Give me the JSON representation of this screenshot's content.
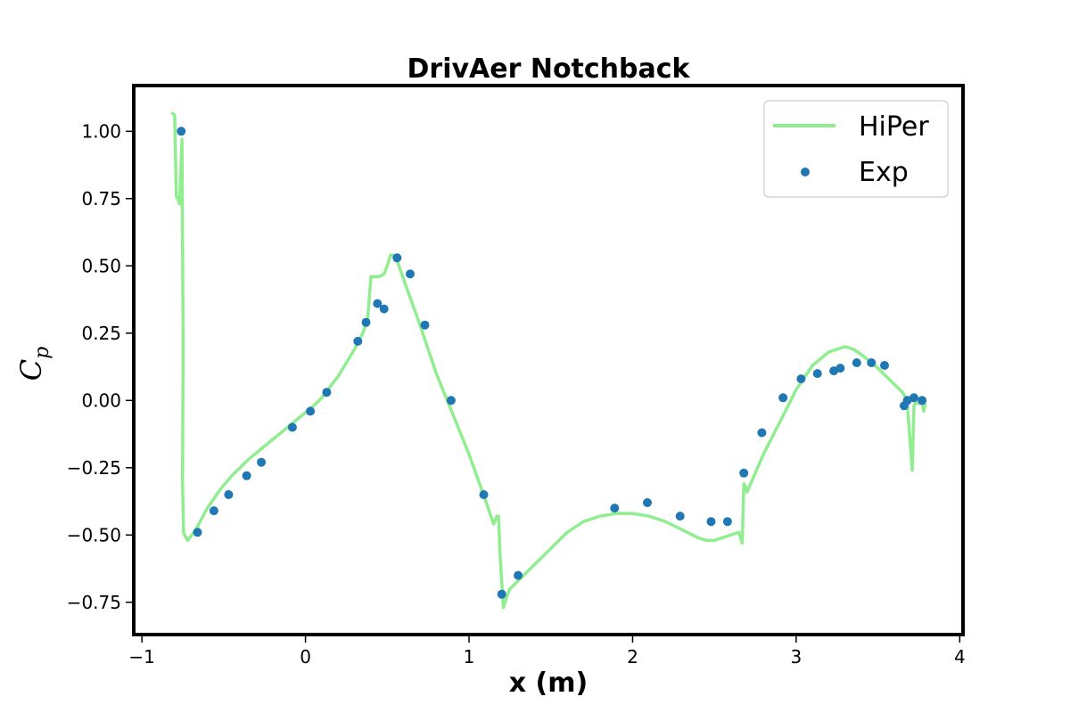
{
  "chart_data": {
    "type": "line",
    "title": "DrivAer Notchback",
    "xlabel": "x (m)",
    "ylabel": "C",
    "ylabel_subscript": "p",
    "xlim": [
      -1.05,
      4.02
    ],
    "ylim": [
      -0.87,
      1.17
    ],
    "xticks": [
      -1,
      0,
      1,
      2,
      3,
      4
    ],
    "xtick_labels": [
      "−1",
      "0",
      "1",
      "2",
      "3",
      "4"
    ],
    "yticks": [
      1.0,
      0.75,
      0.5,
      0.25,
      0.0,
      -0.25,
      -0.5,
      -0.75
    ],
    "ytick_labels": [
      "1.00",
      "0.75",
      "0.50",
      "0.25",
      "0.00",
      "−0.25",
      "−0.50",
      "−0.75"
    ],
    "grid": false,
    "legend_position": "top-right",
    "series": [
      {
        "name": "HiPer",
        "kind": "line",
        "color": "#90ee90",
        "x": [
          -0.82,
          -0.8,
          -0.79,
          -0.78,
          -0.77,
          -0.755,
          -0.748,
          -0.752,
          -0.745,
          -0.74,
          -0.72,
          -0.67,
          -0.6,
          -0.52,
          -0.45,
          -0.35,
          -0.25,
          -0.15,
          -0.05,
          0.05,
          0.1,
          0.2,
          0.3,
          0.35,
          0.38,
          0.4,
          0.4,
          0.42,
          0.45,
          0.48,
          0.5,
          0.52,
          0.54,
          0.56,
          0.6,
          0.7,
          0.8,
          0.9,
          1.0,
          1.1,
          1.15,
          1.17,
          1.18,
          1.19,
          1.21,
          1.23,
          1.25,
          1.3,
          1.4,
          1.5,
          1.6,
          1.7,
          1.8,
          1.9,
          2.0,
          2.1,
          2.2,
          2.3,
          2.4,
          2.45,
          2.5,
          2.55,
          2.6,
          2.65,
          2.67,
          2.68,
          2.69,
          2.7,
          2.75,
          2.8,
          2.9,
          3.0,
          3.1,
          3.2,
          3.25,
          3.3,
          3.35,
          3.4,
          3.5,
          3.6,
          3.65,
          3.67,
          3.68,
          3.69,
          3.7,
          3.71,
          3.72,
          3.73,
          3.75,
          3.77,
          3.78,
          3.79
        ],
        "y": [
          1.07,
          1.06,
          0.76,
          0.75,
          0.73,
          0.97,
          0.2,
          -0.3,
          -0.49,
          -0.5,
          -0.52,
          -0.48,
          -0.4,
          -0.33,
          -0.28,
          -0.22,
          -0.17,
          -0.12,
          -0.07,
          -0.02,
          0.01,
          0.09,
          0.19,
          0.25,
          0.3,
          0.46,
          0.46,
          0.46,
          0.46,
          0.47,
          0.5,
          0.54,
          0.54,
          0.52,
          0.45,
          0.28,
          0.1,
          -0.05,
          -0.2,
          -0.37,
          -0.46,
          -0.43,
          -0.43,
          -0.58,
          -0.77,
          -0.73,
          -0.7,
          -0.67,
          -0.61,
          -0.55,
          -0.49,
          -0.45,
          -0.43,
          -0.42,
          -0.42,
          -0.43,
          -0.45,
          -0.48,
          -0.51,
          -0.52,
          -0.52,
          -0.51,
          -0.5,
          -0.49,
          -0.53,
          -0.31,
          -0.32,
          -0.34,
          -0.27,
          -0.2,
          -0.08,
          0.04,
          0.13,
          0.18,
          0.19,
          0.2,
          0.19,
          0.17,
          0.12,
          0.06,
          0.03,
          0.01,
          -0.02,
          -0.1,
          -0.18,
          -0.26,
          -0.02,
          -0.01,
          -0.01,
          -0.01,
          -0.04,
          -0.01
        ]
      },
      {
        "name": "Exp",
        "kind": "scatter",
        "color": "#1f77b4",
        "x": [
          -0.76,
          -0.66,
          -0.56,
          -0.47,
          -0.36,
          -0.27,
          -0.08,
          0.03,
          0.13,
          0.32,
          0.37,
          0.44,
          0.48,
          0.56,
          0.64,
          0.73,
          0.89,
          1.09,
          1.2,
          1.3,
          1.89,
          2.09,
          2.29,
          2.48,
          2.58,
          2.68,
          2.79,
          2.92,
          3.03,
          3.13,
          3.23,
          3.27,
          3.37,
          3.46,
          3.54,
          3.66,
          3.68,
          3.72,
          3.77
        ],
        "y": [
          1.0,
          -0.49,
          -0.41,
          -0.35,
          -0.28,
          -0.23,
          -0.1,
          -0.04,
          0.03,
          0.22,
          0.29,
          0.36,
          0.34,
          0.53,
          0.47,
          0.28,
          0.0,
          -0.35,
          -0.72,
          -0.65,
          -0.4,
          -0.38,
          -0.43,
          -0.45,
          -0.45,
          -0.27,
          -0.12,
          0.01,
          0.08,
          0.1,
          0.11,
          0.12,
          0.14,
          0.14,
          0.13,
          -0.02,
          0.0,
          0.01,
          0.0
        ]
      }
    ]
  }
}
